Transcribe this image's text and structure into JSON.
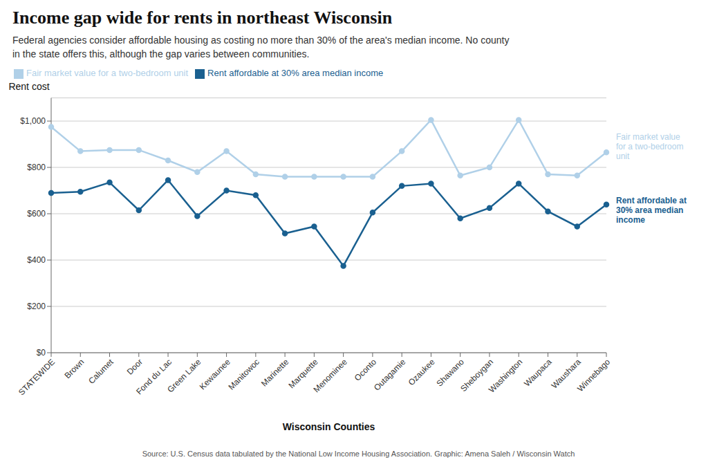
{
  "chart_data": {
    "type": "line",
    "title": "Income gap wide for rents in northeast Wisconsin",
    "subtitle": "Federal agencies consider affordable housing as costing no more than 30% of the area's median income. No county\nin the state offers this, although the gap varies between communities.",
    "xlabel": "Wisconsin Counties",
    "ylabel": "Rent cost",
    "source": "Source: U.S. Census data tabulated by the National Low Income Housing Association. Graphic: Amena Saleh / Wisconsin Watch",
    "categories": [
      "STATEWIDE",
      "Brown",
      "Calumet",
      "Door",
      "Fond du Lac",
      "Green Lake",
      "Kewaunee",
      "Manitowoc",
      "Marinette",
      "Marquette",
      "Menominee",
      "Oconto",
      "Outagamie",
      "Ozaukee",
      "Shawano",
      "Sheboygan",
      "Washington",
      "Waupaca",
      "Waushara",
      "Winnebago"
    ],
    "series": [
      {
        "name": "Fair market value for a two-bedroom unit",
        "color": "#b0d0e8",
        "values": [
          975,
          870,
          875,
          875,
          830,
          780,
          870,
          770,
          760,
          760,
          760,
          760,
          870,
          1005,
          765,
          800,
          1005,
          770,
          765,
          865
        ]
      },
      {
        "name": "Rent affordable at 30% area median income",
        "color": "#1a6090",
        "values": [
          690,
          695,
          735,
          615,
          745,
          590,
          700,
          680,
          515,
          545,
          375,
          605,
          720,
          730,
          580,
          625,
          730,
          610,
          545,
          640
        ]
      }
    ],
    "ylim": [
      0,
      1100
    ],
    "yticks": [
      {
        "value": 0,
        "label": "$0"
      },
      {
        "value": 200,
        "label": "$200"
      },
      {
        "value": 400,
        "label": "$400"
      },
      {
        "value": 600,
        "label": "$600"
      },
      {
        "value": 800,
        "label": "$800"
      },
      {
        "value": 1000,
        "label": "$1,000"
      }
    ],
    "grid": true,
    "legend": "top left",
    "marker": "circle",
    "annotations": [
      {
        "text": "Fair market value\nfor a two-bedroom\nunit",
        "color": "#b0d0e8"
      },
      {
        "text": "Rent affordable at\n30% area median\nincome",
        "color": "#1a6090"
      }
    ]
  }
}
